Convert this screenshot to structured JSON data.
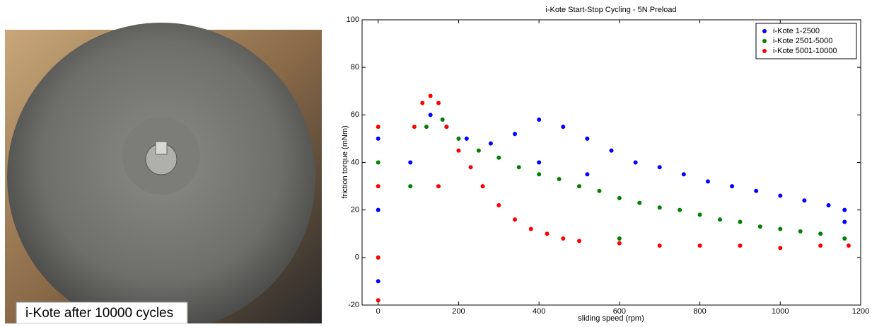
{
  "photo": {
    "caption": "i-Kote after 10000 cycles"
  },
  "chart_data": {
    "type": "scatter",
    "title": "i-Kote Start-Stop Cycling - 5N Preload",
    "x_label": "sliding speed (rpm)",
    "y_label": "friction torque (mNm)",
    "xlim": [
      -40,
      1200
    ],
    "ylim": [
      -20,
      100
    ],
    "xticks": [
      0,
      200,
      400,
      600,
      800,
      1000,
      1200
    ],
    "yticks": [
      -20,
      0,
      20,
      40,
      60,
      80,
      100
    ],
    "legend": "upper right",
    "series": [
      {
        "name": "i-Kote 1-2500",
        "color": "#0000ff",
        "x": [
          0,
          0,
          0,
          80,
          130,
          170,
          220,
          280,
          340,
          400,
          400,
          460,
          520,
          520,
          580,
          640,
          700,
          760,
          820,
          880,
          940,
          1000,
          1060,
          1120,
          1160,
          1160
        ],
        "values": [
          50,
          20,
          -10,
          40,
          60,
          55,
          50,
          48,
          52,
          58,
          40,
          55,
          50,
          35,
          45,
          40,
          38,
          35,
          32,
          30,
          28,
          26,
          24,
          22,
          20,
          15
        ]
      },
      {
        "name": "i-Kote 2501-5000",
        "color": "#008000",
        "x": [
          0,
          0,
          80,
          120,
          160,
          200,
          250,
          300,
          350,
          400,
          450,
          500,
          550,
          600,
          650,
          700,
          750,
          800,
          850,
          900,
          950,
          1000,
          1050,
          1100,
          1160,
          600
        ],
        "values": [
          40,
          0,
          30,
          55,
          58,
          50,
          45,
          42,
          38,
          35,
          33,
          30,
          28,
          25,
          23,
          21,
          20,
          18,
          16,
          15,
          13,
          12,
          11,
          10,
          8,
          8
        ]
      },
      {
        "name": "i-Kote 5001-10000",
        "color": "#ff0000",
        "x": [
          0,
          0,
          0,
          0,
          90,
          110,
          130,
          150,
          170,
          200,
          230,
          260,
          300,
          340,
          380,
          420,
          460,
          500,
          600,
          700,
          800,
          900,
          1000,
          1100,
          1170,
          150
        ],
        "values": [
          55,
          30,
          0,
          -18,
          55,
          65,
          68,
          65,
          55,
          45,
          38,
          30,
          22,
          16,
          12,
          10,
          8,
          7,
          6,
          5,
          5,
          5,
          4,
          5,
          5,
          30
        ]
      }
    ]
  }
}
